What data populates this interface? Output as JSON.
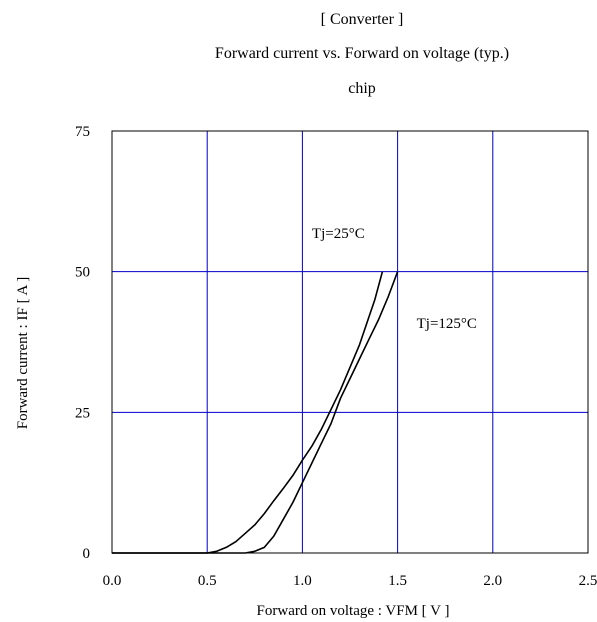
{
  "chart_data": {
    "type": "line",
    "title": "[ Converter ]",
    "subtitle": "Forward current  vs.  Forward on voltage  (typ.)",
    "subtitle2": "chip",
    "xlabel": "Forward on voltage  :  VFM [ V ]",
    "ylabel": "Forward current  :  IF  [ A ]",
    "xlim": [
      0,
      2.5
    ],
    "ylim": [
      0,
      75
    ],
    "x_ticks": [
      "0.0",
      "0.5",
      "1.0",
      "1.5",
      "2.0",
      "2.5"
    ],
    "y_ticks": [
      "0",
      "25",
      "50",
      "75"
    ],
    "grid": true,
    "gridline_color": "#0000cc",
    "series": [
      {
        "name": "Tj=25°C",
        "color": "#000000",
        "points": [
          [
            0.0,
            0
          ],
          [
            0.5,
            0
          ],
          [
            0.55,
            0.3
          ],
          [
            0.6,
            1
          ],
          [
            0.65,
            2
          ],
          [
            0.7,
            3.5
          ],
          [
            0.75,
            5
          ],
          [
            0.8,
            7
          ],
          [
            0.85,
            9.3
          ],
          [
            0.9,
            11.5
          ],
          [
            0.95,
            13.8
          ],
          [
            1.0,
            16.5
          ],
          [
            1.05,
            19
          ],
          [
            1.1,
            22
          ],
          [
            1.15,
            25.5
          ],
          [
            1.2,
            29
          ],
          [
            1.25,
            33
          ],
          [
            1.3,
            37
          ],
          [
            1.35,
            42
          ],
          [
            1.38,
            45
          ],
          [
            1.4,
            47.5
          ],
          [
            1.42,
            50
          ]
        ]
      },
      {
        "name": "Tj=125°C",
        "color": "#000000",
        "points": [
          [
            0.0,
            0
          ],
          [
            0.7,
            0
          ],
          [
            0.75,
            0.3
          ],
          [
            0.8,
            1
          ],
          [
            0.85,
            3
          ],
          [
            0.9,
            6
          ],
          [
            0.95,
            9
          ],
          [
            1.0,
            12.5
          ],
          [
            1.05,
            16
          ],
          [
            1.1,
            19.5
          ],
          [
            1.15,
            23
          ],
          [
            1.2,
            27.5
          ],
          [
            1.25,
            31
          ],
          [
            1.3,
            34.5
          ],
          [
            1.35,
            38
          ],
          [
            1.4,
            41.5
          ],
          [
            1.45,
            45.5
          ],
          [
            1.5,
            50
          ]
        ]
      }
    ],
    "annotations": [
      {
        "text": "Tj=25°C",
        "x": 1.05,
        "y": 56
      },
      {
        "text": "Tj=125°C",
        "x": 1.6,
        "y": 40
      }
    ]
  }
}
